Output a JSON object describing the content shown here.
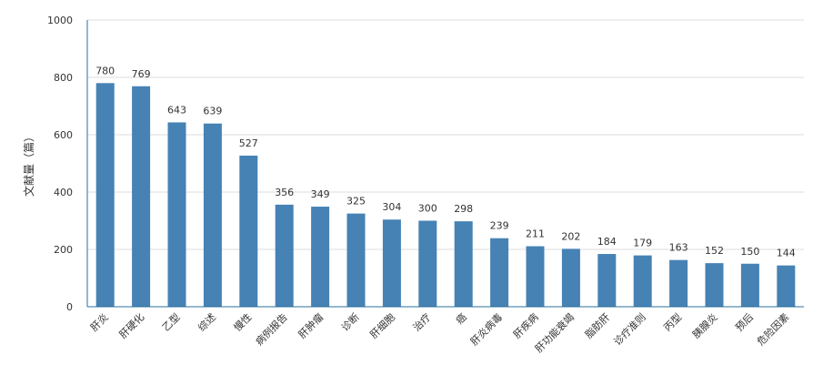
{
  "chart_data": {
    "type": "bar",
    "title": "",
    "xlabel": "",
    "ylabel": "文献量（篇）",
    "ylim": [
      0,
      1000
    ],
    "yticks": [
      0,
      200,
      400,
      600,
      800,
      1000
    ],
    "grid": true,
    "bar_color": "#4682b4",
    "categories": [
      "肝炎",
      "肝硬化",
      "乙型",
      "综述",
      "慢性",
      "病例报告",
      "肝肿瘤",
      "诊断",
      "肝细胞",
      "治疗",
      "癌",
      "肝炎病毒",
      "肝疾病",
      "肝功能衰竭",
      "脂肪肝",
      "诊疗准则",
      "丙型",
      "胰腺炎",
      "预后",
      "危险因素"
    ],
    "values": [
      780,
      769,
      643,
      639,
      527,
      356,
      349,
      325,
      304,
      300,
      298,
      239,
      211,
      202,
      184,
      179,
      163,
      152,
      150,
      144
    ]
  }
}
